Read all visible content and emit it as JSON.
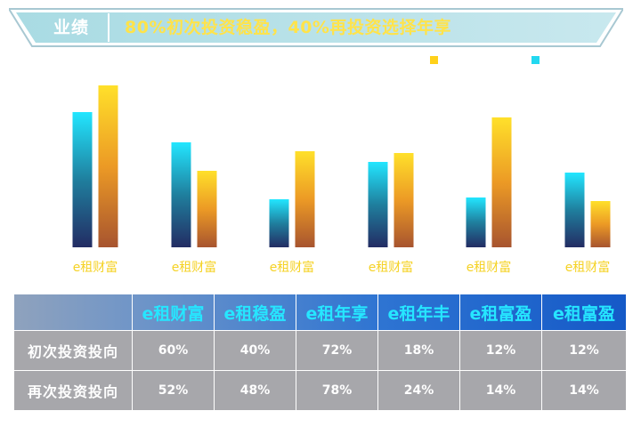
{
  "header": {
    "section": "业绩",
    "subtitle": "80%初次投资稳盈，40%再投资选择年享"
  },
  "chart_data": {
    "type": "bar",
    "categories": [
      "e租财富",
      "e租财富",
      "e租财富",
      "e租财富",
      "e租财富",
      "e租财富"
    ],
    "series": [
      {
        "name": "",
        "color": "#22d8f0",
        "values": [
          76,
          59,
          27,
          48,
          28,
          42
        ]
      },
      {
        "name": "",
        "color": "#ffd11a",
        "values": [
          91,
          43,
          54,
          53,
          73,
          26
        ]
      }
    ],
    "ylim": [
      0,
      100
    ],
    "tick_label_color": "#f5d225"
  },
  "table": {
    "columns": [
      "e租财富",
      "e租稳盈",
      "e租年享",
      "e租年丰",
      "e租富盈",
      "e租富盈"
    ],
    "rows": [
      {
        "label": "初次投资投向",
        "values": [
          "60%",
          "40%",
          "72%",
          "18%",
          "12%",
          "12%"
        ]
      },
      {
        "label": "再次投资投向",
        "values": [
          "52%",
          "48%",
          "78%",
          "24%",
          "14%",
          "14%"
        ]
      }
    ]
  }
}
